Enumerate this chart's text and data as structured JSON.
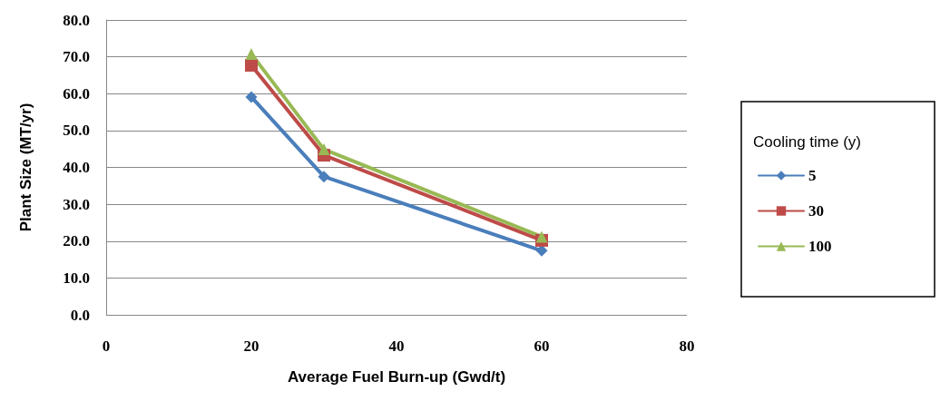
{
  "chart_data": {
    "type": "line",
    "xlabel": "Average Fuel Burn-up (Gwd/t)",
    "ylabel": "Plant Size (MT/yr)",
    "legend_title": "Cooling time (y)",
    "x": [
      20,
      30,
      60
    ],
    "series": [
      {
        "name": "5",
        "color": "#4a7ebb",
        "marker": "diamond",
        "values": [
          59.1,
          37.5,
          17.4
        ]
      },
      {
        "name": "30",
        "color": "#be4b48",
        "marker": "square",
        "values": [
          67.7,
          43.3,
          20.2
        ]
      },
      {
        "name": "100",
        "color": "#98b954",
        "marker": "triangle",
        "values": [
          70.8,
          44.9,
          21.2
        ]
      }
    ],
    "xlim": [
      0,
      80
    ],
    "xticks": [
      0,
      20,
      40,
      60,
      80
    ],
    "ylim": [
      0,
      80
    ],
    "yticks": [
      {
        "value": 0,
        "label": "0.0"
      },
      {
        "value": 10,
        "label": "10.0"
      },
      {
        "value": 20,
        "label": "20.0"
      },
      {
        "value": 30,
        "label": "30.0"
      },
      {
        "value": 40,
        "label": "40.0"
      },
      {
        "value": 50,
        "label": "50.0"
      },
      {
        "value": 60,
        "label": "60.0"
      },
      {
        "value": 70,
        "label": "70.0"
      },
      {
        "value": 80,
        "label": "80.0"
      }
    ],
    "grid": "y",
    "legend": "right"
  }
}
